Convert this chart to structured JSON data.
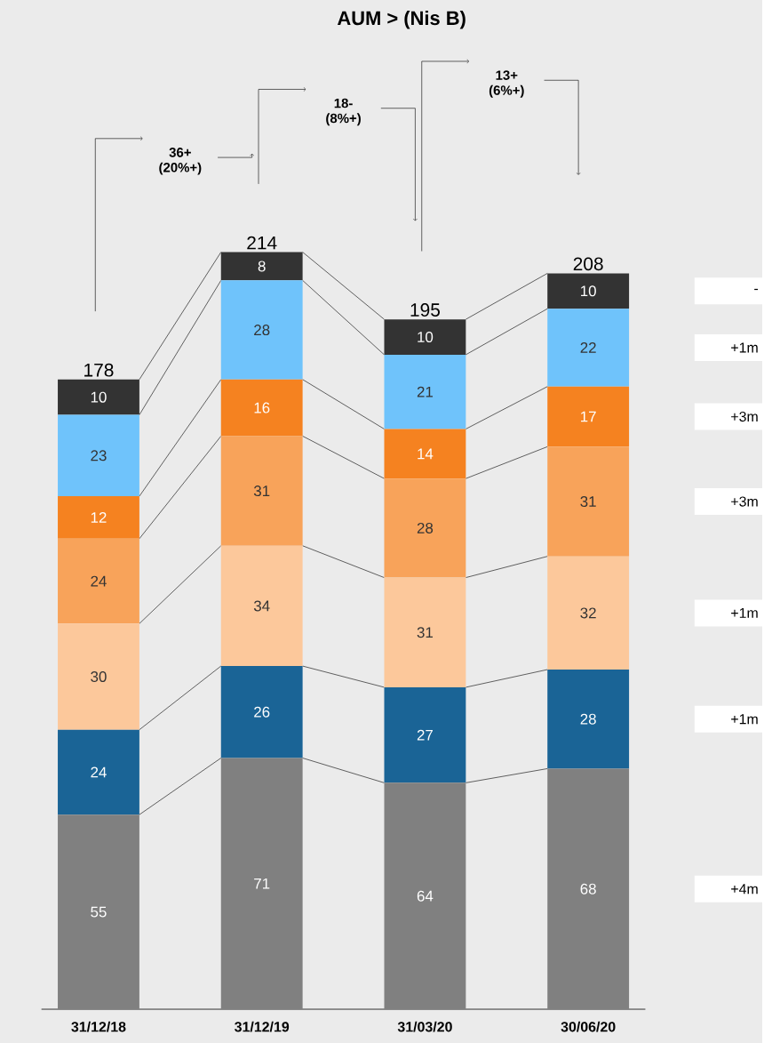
{
  "chart_data": {
    "type": "bar",
    "stacked": true,
    "data_labels": true,
    "title": "AUM > (Nis B)",
    "categories": [
      "31/12/18",
      "31/12/19",
      "31/03/20",
      "30/06/20"
    ],
    "series": [
      {
        "color": "#808080",
        "values": [
          55,
          71,
          64,
          68
        ]
      },
      {
        "color": "#1a6496",
        "values": [
          24,
          26,
          27,
          28
        ]
      },
      {
        "color": "#fcc89b",
        "values": [
          30,
          34,
          31,
          32
        ]
      },
      {
        "color": "#f8a35a",
        "values": [
          24,
          31,
          28,
          31
        ]
      },
      {
        "color": "#f58220",
        "values": [
          12,
          16,
          14,
          17
        ]
      },
      {
        "color": "#6fc3fb",
        "values": [
          23,
          28,
          21,
          22
        ]
      },
      {
        "color": "#333333",
        "values": [
          10,
          8,
          10,
          10
        ]
      }
    ],
    "totals": [
      "178",
      "214",
      "195",
      "208"
    ],
    "annotations": [
      "36+ (20%+)",
      "18- (8%+)",
      "13+ (6%+)",
      "+4m",
      "+1m",
      "+1m",
      "+3m",
      "+3m",
      "+1m",
      "-"
    ]
  }
}
